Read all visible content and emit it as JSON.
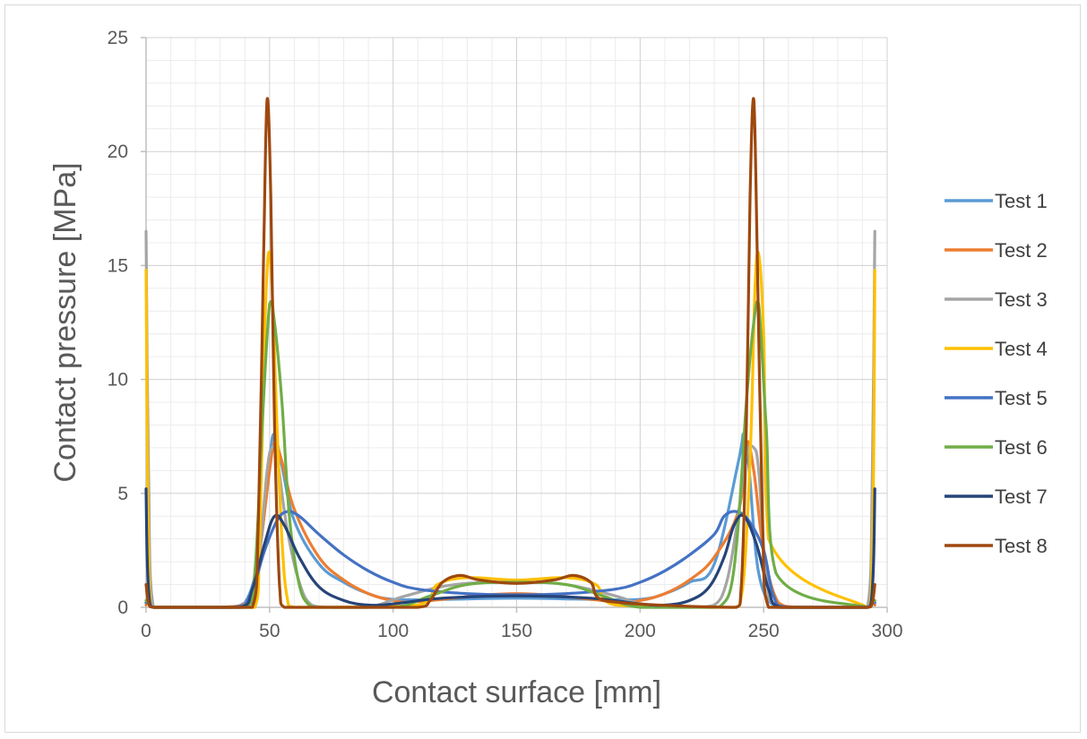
{
  "chart_data": {
    "type": "line",
    "title": "",
    "xlabel": "Contact surface [mm]",
    "ylabel": "Contact pressure [MPa]",
    "xlim": [
      0,
      300
    ],
    "ylim": [
      0,
      25
    ],
    "xticks": [
      0,
      50,
      100,
      150,
      200,
      250,
      300
    ],
    "yticks": [
      0,
      5,
      10,
      15,
      20,
      25
    ],
    "grid": true,
    "legend_position": "right",
    "series": [
      {
        "name": "Test 1",
        "color": "#5b9bd5",
        "x": [
          0,
          1,
          3,
          30,
          40,
          46,
          50,
          52,
          55,
          60,
          70,
          80,
          90,
          100,
          120,
          150,
          180,
          200,
          210,
          220,
          230,
          240,
          242,
          244,
          248,
          255,
          265,
          292,
          294,
          295
        ],
        "y": [
          0.2,
          0.3,
          0,
          0,
          0.2,
          2.5,
          6.5,
          7.6,
          6.2,
          3.8,
          1.9,
          1.1,
          0.6,
          0.35,
          0.35,
          0.4,
          0.35,
          0.35,
          0.6,
          1.1,
          1.9,
          6.5,
          7.6,
          6.2,
          1.5,
          0,
          0,
          0,
          0.3,
          0.2
        ]
      },
      {
        "name": "Test 2",
        "color": "#ed7d31",
        "x": [
          0,
          1,
          3,
          30,
          42,
          46,
          50,
          52,
          55,
          60,
          70,
          80,
          90,
          100,
          110,
          150,
          190,
          200,
          210,
          220,
          230,
          240,
          243,
          246,
          250,
          256,
          265,
          292,
          294,
          295
        ],
        "y": [
          0.1,
          0.2,
          0,
          0,
          0.3,
          2.5,
          6.0,
          7.2,
          6.4,
          4.3,
          2.2,
          1.2,
          0.6,
          0.3,
          0.25,
          0.6,
          0.25,
          0.3,
          0.6,
          1.2,
          2.2,
          4.3,
          7.2,
          6.0,
          2.5,
          0.2,
          0,
          0,
          0.2,
          0.1
        ]
      },
      {
        "name": "Test 3",
        "color": "#a5a5a5",
        "x": [
          0,
          1,
          3,
          40,
          45,
          49,
          51,
          53,
          57,
          62,
          67,
          75,
          90,
          105,
          125,
          150,
          170,
          190,
          205,
          220,
          230,
          235,
          239,
          243,
          246,
          248,
          251,
          256,
          292,
          294,
          295
        ],
        "y": [
          16.5,
          6.0,
          0,
          0,
          1.5,
          6.0,
          7.0,
          6.6,
          3.5,
          1.1,
          0.1,
          0,
          0,
          0.5,
          1.0,
          1.1,
          1.0,
          0.5,
          0,
          0,
          0.1,
          1.1,
          3.5,
          6.6,
          7.0,
          6.0,
          1.5,
          0,
          0,
          6.0,
          16.5
        ]
      },
      {
        "name": "Test 4",
        "color": "#ffc000",
        "x": [
          0,
          0.6,
          1.5,
          3,
          44,
          46,
          48,
          49.5,
          51,
          53,
          55,
          57,
          60,
          110,
          118,
          130,
          150,
          170,
          182,
          190,
          238,
          241,
          243,
          245,
          246.5,
          248,
          250,
          252,
          292,
          293.5,
          294.5,
          295
        ],
        "y": [
          14.8,
          6.0,
          0.5,
          0,
          0,
          3.0,
          12.0,
          15.5,
          14.0,
          8.0,
          3.0,
          0.5,
          0,
          0.1,
          1.0,
          1.3,
          1.2,
          1.3,
          1.0,
          0.1,
          0,
          0.5,
          3.0,
          8.0,
          14.0,
          15.5,
          12.0,
          3.0,
          0,
          0.5,
          6.0,
          14.8
        ]
      },
      {
        "name": "Test 5",
        "color": "#4472c4",
        "x": [
          0,
          1,
          3,
          35,
          42,
          48,
          53,
          57,
          62,
          70,
          80,
          90,
          100,
          110,
          130,
          150,
          170,
          190,
          200,
          210,
          220,
          230,
          234,
          239,
          244,
          250,
          254,
          260,
          292,
          294,
          295
        ],
        "y": [
          0.2,
          0.3,
          0,
          0,
          0.5,
          2.5,
          3.8,
          4.2,
          4.0,
          3.2,
          2.3,
          1.6,
          1.1,
          0.8,
          0.6,
          0.55,
          0.6,
          0.8,
          1.1,
          1.6,
          2.3,
          3.2,
          4.0,
          4.2,
          3.8,
          2.5,
          0.5,
          0,
          0,
          0.3,
          0.2
        ]
      },
      {
        "name": "Test 6",
        "color": "#70ad47",
        "x": [
          0,
          1,
          3,
          40,
          44,
          47,
          50,
          52,
          55,
          58,
          62,
          66,
          70,
          100,
          115,
          130,
          150,
          170,
          185,
          200,
          229,
          233,
          237,
          240,
          243,
          246,
          248,
          251,
          255,
          292,
          294,
          295
        ],
        "y": [
          0.3,
          0.2,
          0,
          0,
          1.5,
          8.0,
          13.3,
          12.5,
          9.0,
          4.0,
          1.0,
          0.1,
          0,
          0,
          0.5,
          1.0,
          1.1,
          1.0,
          0.5,
          0,
          0,
          0.1,
          1.0,
          4.0,
          9.0,
          12.5,
          13.3,
          8.0,
          1.5,
          0,
          0.2,
          0.3
        ]
      },
      {
        "name": "Test 7",
        "color": "#264478",
        "x": [
          0,
          0.5,
          1.5,
          3,
          38,
          43,
          48,
          52,
          56,
          62,
          70,
          80,
          90,
          100,
          120,
          150,
          180,
          200,
          210,
          220,
          228,
          234,
          238,
          242,
          247,
          252,
          257,
          292,
          293.5,
          294.5,
          295
        ],
        "y": [
          5.2,
          2.0,
          0.2,
          0,
          0,
          0.8,
          2.8,
          4.0,
          3.6,
          2.2,
          0.9,
          0.3,
          0.1,
          0.15,
          0.4,
          0.5,
          0.4,
          0.15,
          0.1,
          0.3,
          0.9,
          2.2,
          3.6,
          4.0,
          2.8,
          0.8,
          0,
          0,
          0.2,
          2.0,
          5.2
        ]
      },
      {
        "name": "Test 8",
        "color": "#9e480e",
        "x": [
          0,
          1,
          3,
          43,
          45.5,
          47.5,
          49,
          50.5,
          52,
          54,
          56,
          110,
          115,
          120,
          127,
          135,
          150,
          165,
          173,
          180,
          185,
          239,
          241,
          243,
          244.5,
          246,
          247.5,
          249.5,
          252,
          292,
          294,
          295
        ],
        "y": [
          1.0,
          0.2,
          0,
          0,
          4.0,
          15.0,
          22.3,
          18.0,
          8.0,
          1.0,
          0,
          0,
          0.3,
          1.1,
          1.4,
          1.2,
          1.05,
          1.2,
          1.4,
          1.1,
          0.3,
          0,
          1.0,
          8.0,
          18.0,
          22.3,
          15.0,
          4.0,
          0,
          0,
          0.2,
          1.0
        ]
      }
    ]
  }
}
